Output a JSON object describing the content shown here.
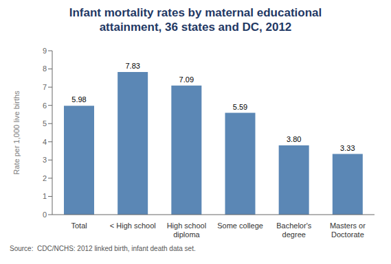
{
  "chart_data": {
    "type": "bar",
    "title": "Infant mortality rates by maternal educational\nattainment, 36 states and DC, 2012",
    "categories": [
      "Total",
      "< High school",
      "High school\ndiploma",
      "Some college",
      "Bachelor's\ndegree",
      "Masters or\nDoctorate"
    ],
    "values": [
      5.98,
      7.83,
      7.09,
      5.59,
      3.8,
      3.33
    ],
    "value_labels": [
      "5.98",
      "7.83",
      "7.09",
      "5.59",
      "3.80",
      "3.33"
    ],
    "data_labels": true,
    "color": "#5b87b5",
    "ylabel": "Rate per 1,000 live births",
    "ylim": [
      0,
      9
    ],
    "yticks": [
      0,
      1,
      2,
      3,
      4,
      5,
      6,
      7,
      8,
      9
    ],
    "grid": false,
    "annotations": [
      "Source:  CDC/NCHS: 2012 linked birth, infant death data set."
    ]
  }
}
